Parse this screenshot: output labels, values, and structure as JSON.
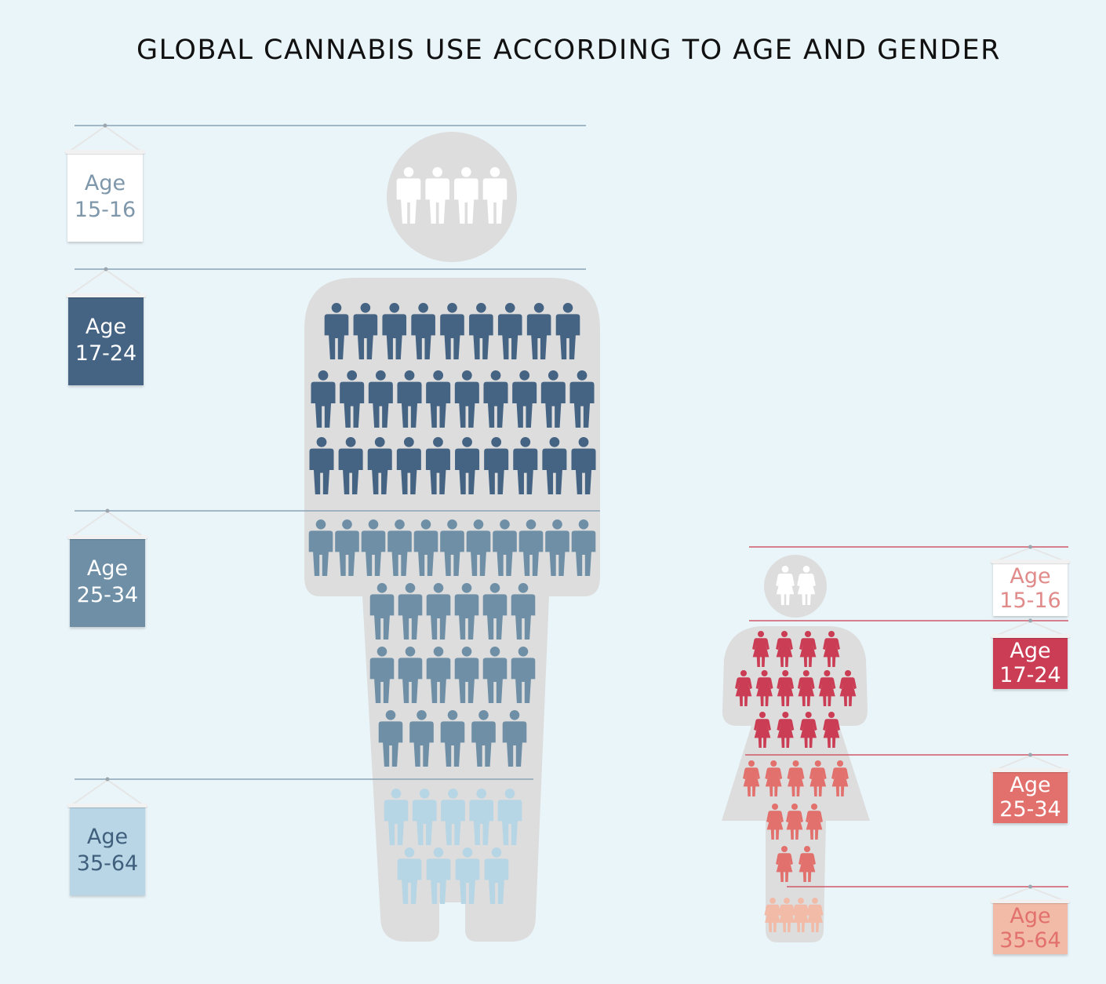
{
  "title": "GLOBAL CANNABIS USE ACCORDING TO AGE AND GENDER",
  "colors": {
    "background": "#eaf5f9",
    "silhouette": "#dddddd",
    "male": {
      "15-16": "#ffffff",
      "17-24": "#456383",
      "25-34": "#6e8fa6",
      "35-64": "#b6d5e5"
    },
    "female": {
      "15-16": "#ffffff",
      "17-24": "#cb3d54",
      "25-34": "#e2706c",
      "35-64": "#f2bba7"
    },
    "male_line": "#8aa3b6",
    "female_line": "#cf5a6a"
  },
  "groups": {
    "male": [
      {
        "word": "Age",
        "range": "15-16",
        "icon_count": 4
      },
      {
        "word": "Age",
        "range": "17-24",
        "icon_count": 28
      },
      {
        "word": "Age",
        "range": "25-34",
        "icon_count": 28
      },
      {
        "word": "Age",
        "range": "35-64",
        "icon_count": 9
      }
    ],
    "female": [
      {
        "word": "Age",
        "range": "15-16",
        "icon_count": 2
      },
      {
        "word": "Age",
        "range": "17-24",
        "icon_count": 14
      },
      {
        "word": "Age",
        "range": "25-34",
        "icon_count": 10
      },
      {
        "word": "Age",
        "range": "35-64",
        "icon_count": 4
      }
    ]
  }
}
